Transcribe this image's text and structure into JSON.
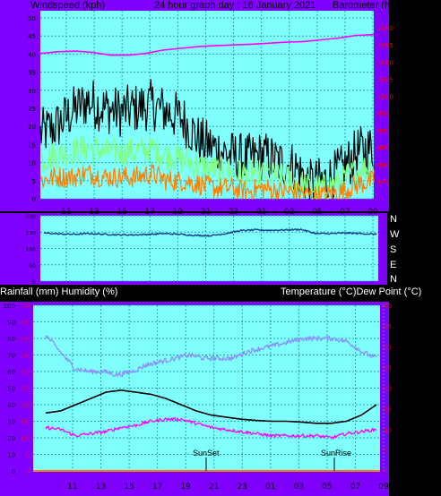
{
  "colors": {
    "frame": "#8000ff",
    "plot_bg": "#80ffff",
    "grid": "#2aa6a6",
    "panel_text": "#000000",
    "tick_text": "#000000",
    "pressure": "#ff00ff",
    "gust": "#000000",
    "wind_avg": "#80ff80",
    "wind_min": "#ff8000",
    "direction": "#1a3a8a",
    "temperature": "#000000",
    "dewpoint": "#ff00ff",
    "humidity": "#8c8cff",
    "rain": "#ff8000",
    "right_scale_red": "#ff0000"
  },
  "header": {
    "left": "Windspeed (kph)",
    "center": "24 hour graph day : 16 January 2021",
    "right": "Barometer (hpa)"
  },
  "middle": {
    "compass": [
      "N",
      "W",
      "S",
      "E",
      "N"
    ]
  },
  "bottom": {
    "left_title": "Rainfall (mm)  Humidity (%)",
    "right_title": "Temperature (°C)Dew Point (°C)",
    "sunset": "SunSet",
    "sunrise": "SunRise"
  },
  "chart_data": [
    {
      "type": "line",
      "panel": "wind_barometer",
      "x_ticks": [
        "11",
        "13",
        "15",
        "17",
        "19",
        "21",
        "23",
        "01",
        "03",
        "05",
        "07",
        "09"
      ],
      "ylabel_left": "Windspeed (kph)",
      "ylim_left": [
        0,
        50
      ],
      "yticks_left": [
        0,
        5,
        10,
        15,
        20,
        25,
        30,
        35,
        40,
        45,
        50
      ],
      "ylabel_right": "Barometer (hpa)",
      "ylim_right": [
        970,
        1025
      ],
      "yticks_right": [
        975,
        980,
        985,
        990,
        995,
        1000,
        1005,
        1010,
        1015,
        1020
      ],
      "series": [
        {
          "name": "Barometer (hpa)",
          "axis": "right",
          "color": "#ff00ff",
          "values": [
            1012.5,
            1013,
            1013.2,
            1012.8,
            1012,
            1012,
            1012.5,
            1013.5,
            1014,
            1014.5,
            1014.8,
            1015,
            1015.2,
            1015.5,
            1015.8,
            1016,
            1016.5,
            1017,
            1017.8,
            1018
          ]
        },
        {
          "axis": "left",
          "color": "#000000",
          "values": [
            18,
            20,
            24,
            27,
            25,
            24,
            25,
            26,
            24,
            22,
            16,
            14,
            12,
            11,
            12,
            10,
            9,
            4,
            5,
            8,
            13,
            14
          ]
        },
        {
          "axis": "left",
          "color": "#80ff80",
          "values": [
            11,
            12,
            13,
            14,
            13,
            13,
            13,
            14,
            12,
            11,
            9,
            8,
            7,
            7,
            7,
            6,
            5,
            3,
            3,
            5,
            8,
            9
          ]
        },
        {
          "axis": "left",
          "color": "#ff8000",
          "values": [
            5,
            6,
            6,
            7,
            6,
            6,
            6,
            7,
            5,
            5,
            4,
            3,
            3,
            2,
            3,
            2,
            2,
            1,
            1,
            2,
            4,
            5
          ]
        }
      ]
    },
    {
      "type": "line",
      "panel": "wind_direction",
      "ylim": [
        0,
        360
      ],
      "yticks": [
        0,
        90,
        180,
        270,
        360
      ],
      "series": [
        {
          "color": "#1a3a8a",
          "values": [
            265,
            260,
            258,
            262,
            258,
            255,
            255,
            258,
            262,
            258,
            252,
            250,
            262,
            278,
            282,
            280,
            282,
            285,
            262,
            262,
            265,
            262,
            258
          ]
        }
      ]
    },
    {
      "type": "line",
      "panel": "rain_humidity_temperature",
      "ylim_left": [
        0,
        100
      ],
      "yticks_left": [
        0,
        10,
        20,
        30,
        40,
        50,
        60,
        70,
        80,
        90,
        100
      ],
      "ylim_rain": [
        0,
        50
      ],
      "yticks_rain": [
        0,
        5,
        10,
        15,
        20,
        25,
        30,
        35,
        40,
        45,
        50
      ],
      "ylim_right": [
        0,
        40
      ],
      "yticks_right": [
        0,
        5,
        10,
        15,
        20,
        25,
        30,
        35,
        40
      ],
      "series": [
        {
          "name": "Humidity (%)",
          "axis": "left",
          "color": "#8c8cff",
          "values": [
            82,
            72,
            62,
            60,
            60,
            58,
            60,
            64,
            66,
            68,
            70,
            68,
            68,
            68,
            72,
            74,
            76,
            78,
            80,
            80,
            80,
            78,
            72,
            68
          ]
        },
        {
          "name": "Temperature (°C)",
          "axis": "right",
          "color": "#000000",
          "values": [
            14,
            14.5,
            16,
            17.5,
            19,
            19.5,
            19,
            18.5,
            17.5,
            16,
            14.5,
            13.5,
            13,
            12.5,
            12.2,
            12,
            12,
            11.8,
            11.5,
            11.5,
            12,
            13.5,
            16
          ]
        },
        {
          "name": "Dew Point (°C)",
          "axis": "right",
          "color": "#ff00ff",
          "values": [
            10.5,
            10,
            8.5,
            9,
            9.5,
            10.5,
            11,
            12,
            12.5,
            12.5,
            11.5,
            10.5,
            10,
            9.5,
            9,
            8.5,
            8.5,
            8.5,
            8.5,
            8,
            9,
            9.5,
            10
          ]
        },
        {
          "name": "Rainfall (mm)",
          "axis": "rain",
          "color": "#ff8000",
          "values": [
            0,
            0,
            0,
            0,
            0,
            0,
            0,
            0,
            0,
            0,
            0,
            0,
            0,
            0,
            0,
            0,
            0,
            0,
            0,
            0,
            0,
            0,
            0,
            0
          ]
        }
      ]
    }
  ]
}
